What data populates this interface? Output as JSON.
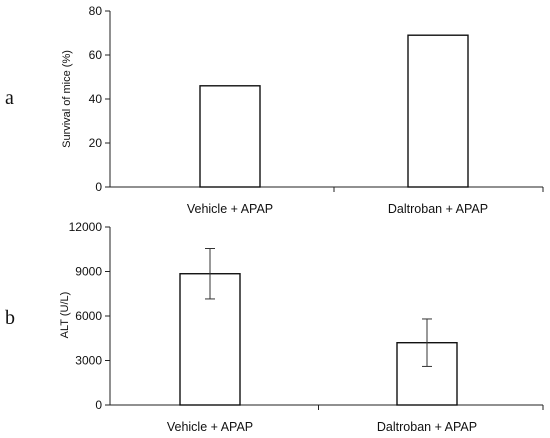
{
  "chart_data": [
    {
      "panel": "a",
      "type": "bar",
      "categories": [
        "Vehicle + APAP",
        "Daltroban + APAP"
      ],
      "values": [
        46,
        69
      ],
      "ylabel": "Survival of mice (%)",
      "ylim": [
        0,
        80
      ],
      "yticks": [
        0,
        20,
        40,
        60,
        80
      ],
      "grid": false,
      "legend": "none"
    },
    {
      "panel": "b",
      "type": "bar",
      "categories": [
        "Vehicle + APAP",
        "Daltroban + APAP"
      ],
      "values": [
        8850,
        4200
      ],
      "error": [
        1700,
        1600
      ],
      "ylabel": "ALT (U/L)",
      "ylim": [
        0,
        12000
      ],
      "yticks": [
        0,
        3000,
        6000,
        9000,
        12000
      ],
      "grid": false,
      "legend": "none"
    }
  ]
}
